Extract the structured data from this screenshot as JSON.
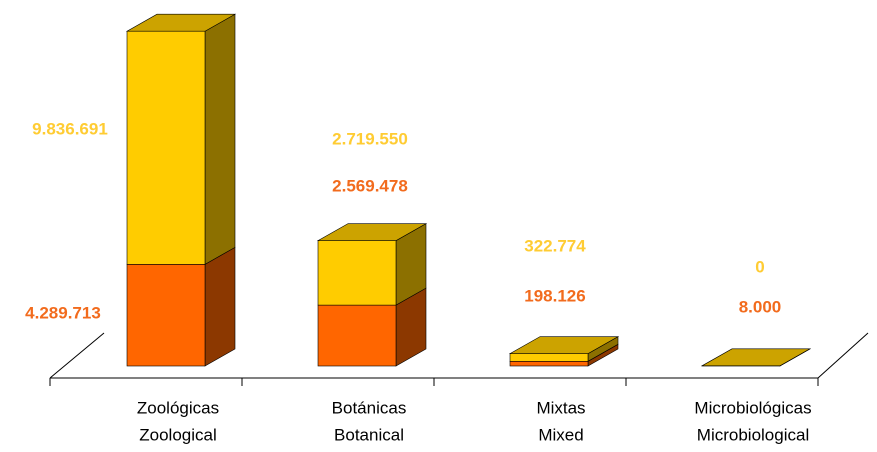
{
  "chart_data": {
    "type": "bar3d_stacked",
    "categories": [
      [
        "Zoológicas",
        "Zoological"
      ],
      [
        "Botánicas",
        "Botanical"
      ],
      [
        "Mixtas",
        "Mixed"
      ],
      [
        "Microbiológicas",
        "Microbiological"
      ]
    ],
    "series": [
      {
        "color": "#ff6600",
        "label_color": "#f26b1d",
        "values": [
          4289713,
          2569478,
          198126,
          8000
        ],
        "value_labels": [
          "4.289.713",
          "2.569.478",
          "198.126",
          "8.000"
        ]
      },
      {
        "color": "#ffcc00",
        "label_color": "#ffcc33",
        "values": [
          9836691,
          2719550,
          322774,
          0
        ],
        "value_labels": [
          "9.836.691",
          "2.719.550",
          "322.774",
          "0"
        ]
      }
    ]
  }
}
